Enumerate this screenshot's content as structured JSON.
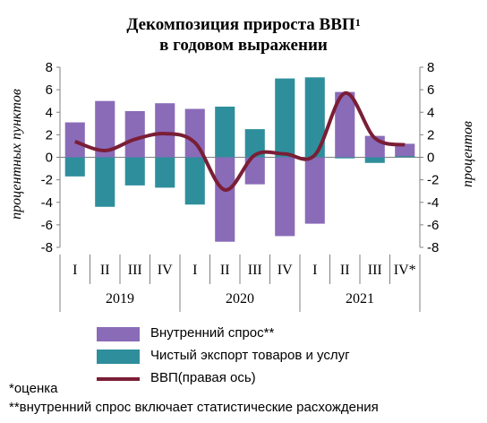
{
  "title": {
    "line1": "Декомпозиция прироста ВВП",
    "sup": "1",
    "line2": "в годовом выражении"
  },
  "notes": {
    "estimate": "*оценка",
    "discrepancy": "**внутренний спрос включает статистические расхождения"
  },
  "colors": {
    "demand": "#8a6bb8",
    "export": "#2f8e9c",
    "gdp": "#7a1e36",
    "grid": "#808080"
  },
  "chart_data": {
    "type": "bar",
    "ylabel_left": "процентных пунктов",
    "ylabel_right": "процентов",
    "ylim": [
      -8,
      8
    ],
    "y_ticks": [
      "8",
      "6",
      "4",
      "2",
      "0",
      "-2",
      "-4",
      "-6",
      "-8"
    ],
    "quarters": [
      "I",
      "II",
      "III",
      "IV",
      "I",
      "II",
      "III",
      "IV",
      "I",
      "II",
      "III",
      "IV*"
    ],
    "years": [
      "2019",
      "2020",
      "2021"
    ],
    "series": [
      {
        "name": "Внутренний спрос**",
        "kind": "bar",
        "values": [
          3.1,
          5.0,
          4.1,
          4.8,
          4.3,
          -7.5,
          -2.4,
          -7.0,
          -5.9,
          5.8,
          1.9,
          1.2
        ]
      },
      {
        "name": "Чистый экспорт товаров и услуг",
        "kind": "bar",
        "values": [
          -1.7,
          -4.4,
          -2.5,
          -2.7,
          -4.2,
          4.5,
          2.5,
          7.0,
          7.1,
          -0.1,
          -0.5,
          0.1
        ]
      },
      {
        "name": "ВВП(правая ось)",
        "kind": "line",
        "axis": "right",
        "values": [
          1.4,
          0.6,
          1.6,
          2.1,
          1.3,
          -2.9,
          0.2,
          0.3,
          0.2,
          5.7,
          1.7,
          1.1
        ]
      }
    ]
  }
}
